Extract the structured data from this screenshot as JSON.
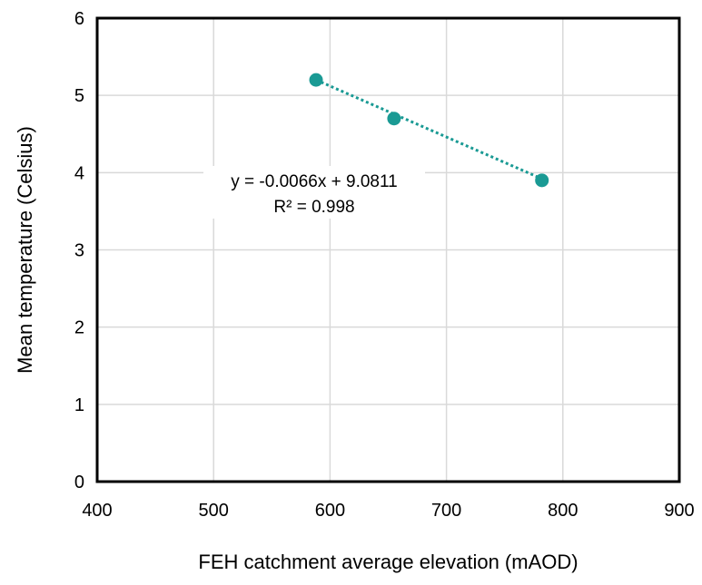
{
  "chart_data": {
    "type": "scatter",
    "xlabel": "FEH catchment average elevation (mAOD)",
    "ylabel": "Mean temperature (Celsius)",
    "xlim": [
      400,
      900
    ],
    "ylim": [
      0,
      6
    ],
    "x_ticks": [
      400,
      500,
      600,
      700,
      800,
      900
    ],
    "y_ticks": [
      0,
      1,
      2,
      3,
      4,
      5,
      6
    ],
    "grid": true,
    "legend": "none",
    "series": [
      {
        "x": [
          588,
          655,
          782
        ],
        "y": [
          5.2,
          4.7,
          3.9
        ],
        "color": "#1a9a94"
      }
    ],
    "trendline": {
      "type": "linear",
      "slope": -0.0066,
      "intercept": 9.0811,
      "style": "dotted",
      "color": "#1a9a94",
      "equation_label": "y = -0.0066x + 9.0811",
      "r2_label": "R² = 0.998"
    }
  }
}
